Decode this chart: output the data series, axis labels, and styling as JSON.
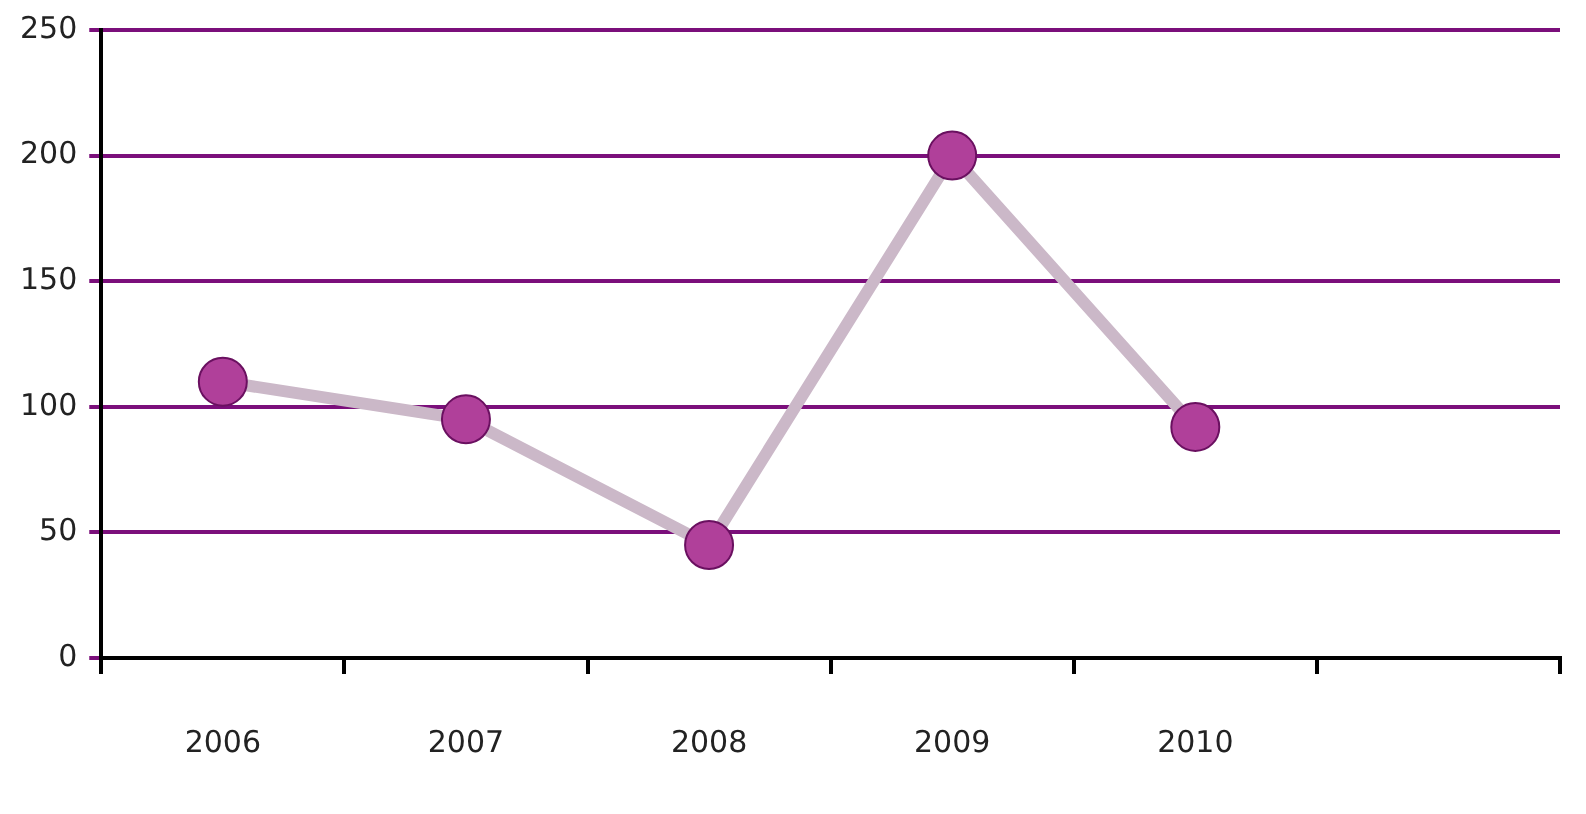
{
  "chart_data": {
    "type": "line",
    "categories": [
      "2006",
      "2007",
      "2008",
      "2009",
      "2010",
      null
    ],
    "series": [
      {
        "values": [
          110,
          95,
          45,
          200,
          92,
          null
        ],
        "color": "#cbb8c8",
        "colors": [
          "#b0409a",
          "#b0409a",
          "#b0409a",
          "#b0409a",
          "#b0409a",
          "#b0409a"
        ]
      }
    ],
    "ylim": [
      0,
      250
    ],
    "yticks": [
      0,
      50,
      100,
      150,
      200,
      250
    ],
    "grid": "y",
    "legend": false,
    "marker": "circle",
    "line_style": "solid"
  }
}
